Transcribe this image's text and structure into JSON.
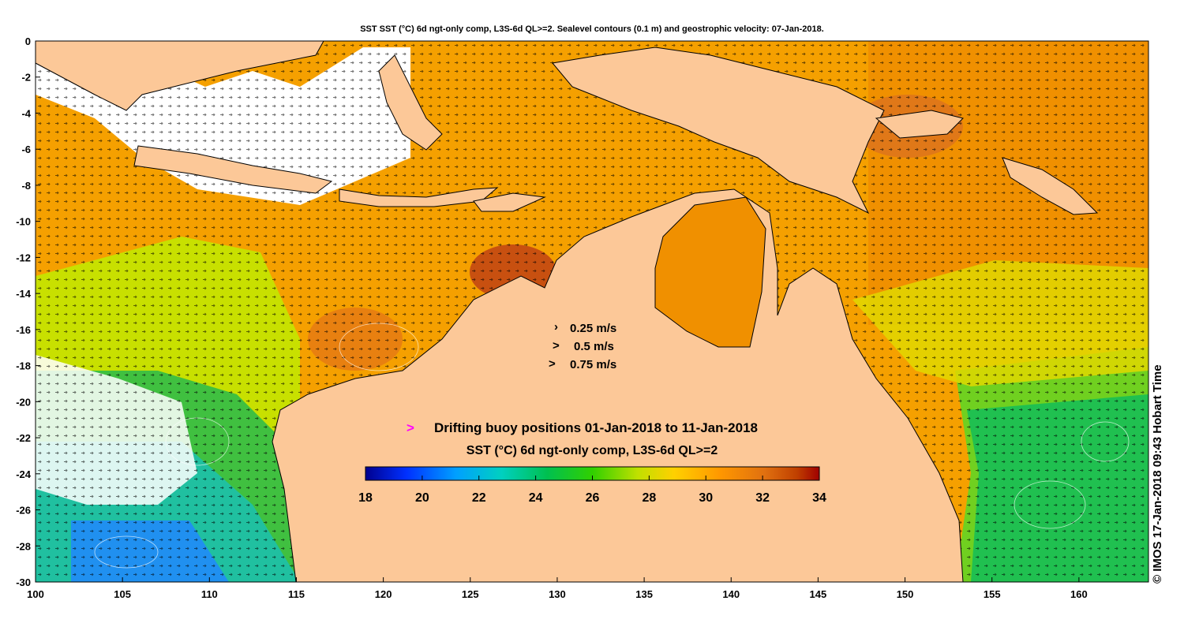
{
  "title": "SST SST (°C) 6d ngt-only comp, L3S-6d QL>=2. Sealevel contours (0.1 m) and geostrophic velocity: 07-Jan-2018.",
  "credit": "© IMOS 17-Jan-2018 09:43 Hobart Time",
  "map": {
    "lon_range": [
      100,
      164
    ],
    "lat_range": [
      -30,
      0
    ],
    "x_ticks": [
      "100",
      "105",
      "110",
      "115",
      "120",
      "125",
      "130",
      "135",
      "140",
      "145",
      "150",
      "155",
      "160"
    ],
    "y_ticks": [
      "0",
      "-2",
      "-4",
      "-6",
      "-8",
      "-10",
      "-12",
      "-14",
      "-16",
      "-18",
      "-20",
      "-22",
      "-24",
      "-26",
      "-28",
      "-30"
    ],
    "x_tick_values": [
      100,
      105,
      110,
      115,
      120,
      125,
      130,
      135,
      140,
      145,
      150,
      155,
      160
    ],
    "y_tick_values": [
      0,
      -2,
      -4,
      -6,
      -8,
      -10,
      -12,
      -14,
      -16,
      -18,
      -20,
      -22,
      -24,
      -26,
      -28,
      -30
    ],
    "land_color": "#fcc898"
  },
  "velocity_legend": {
    "items": [
      "0.25 m/s",
      "0.5 m/s",
      "0.75 m/s"
    ]
  },
  "buoy_legend": {
    "label": "Drifting buoy positions 01-Jan-2018 to 11-Jan-2018",
    "marker": ">",
    "marker_color": "#ff00ff"
  },
  "colorbar": {
    "title": "SST (°C) 6d ngt-only comp, L3S-6d QL>=2",
    "min": 18,
    "max": 34,
    "ticks": [
      "18",
      "20",
      "22",
      "24",
      "26",
      "28",
      "30",
      "32",
      "34"
    ],
    "tick_values": [
      18,
      20,
      22,
      24,
      26,
      28,
      30,
      32,
      34
    ],
    "colors": [
      "#00008f",
      "#0030ff",
      "#00a0ff",
      "#00d0c0",
      "#00c050",
      "#30d000",
      "#c0e000",
      "#ffd000",
      "#ff9800",
      "#e07010",
      "#c04000",
      "#a00000"
    ]
  }
}
